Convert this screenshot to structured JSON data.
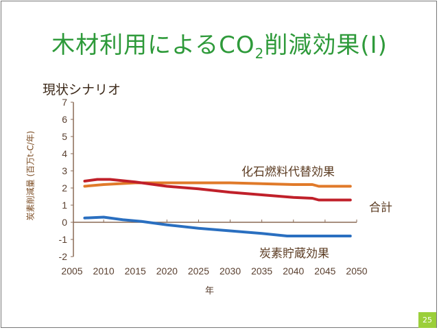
{
  "slide": {
    "title_prefix": "木材利用による",
    "title_co": "CO",
    "title_sub": "2",
    "title_suffix": "削減効果(I)",
    "scenario": "現状シナリオ",
    "page_number": "25"
  },
  "chart_data": {
    "type": "line",
    "title": "木材利用によるCO2削減効果(I)",
    "xlabel": "年",
    "ylabel": "炭素削減量 (百万t-C/年)",
    "xlim": [
      2005,
      2050
    ],
    "ylim": [
      -2,
      7
    ],
    "xticks": [
      2005,
      2010,
      2015,
      2020,
      2025,
      2030,
      2035,
      2040,
      2045,
      2050
    ],
    "yticks": [
      -2,
      -1,
      0,
      1,
      2,
      3,
      4,
      5,
      6,
      7
    ],
    "grid": false,
    "series": [
      {
        "name": "化石燃料代替効果",
        "color": "#e07a2a",
        "x": [
          2007,
          2010,
          2015,
          2020,
          2030,
          2040,
          2043,
          2044,
          2049
        ],
        "y": [
          2.1,
          2.2,
          2.3,
          2.3,
          2.3,
          2.2,
          2.2,
          2.1,
          2.1
        ]
      },
      {
        "name": "合計",
        "color": "#c0202a",
        "x": [
          2007,
          2009,
          2011,
          2015,
          2020,
          2025,
          2030,
          2035,
          2040,
          2043,
          2044,
          2049
        ],
        "y": [
          2.4,
          2.5,
          2.5,
          2.35,
          2.1,
          1.95,
          1.75,
          1.6,
          1.45,
          1.4,
          1.3,
          1.3
        ]
      },
      {
        "name": "炭素貯蔵効果",
        "color": "#2a6fc0",
        "x": [
          2007,
          2010,
          2013,
          2016,
          2020,
          2025,
          2030,
          2035,
          2039,
          2049
        ],
        "y": [
          0.25,
          0.3,
          0.15,
          0.05,
          -0.15,
          -0.35,
          -0.5,
          -0.65,
          -0.8,
          -0.8
        ]
      }
    ]
  }
}
